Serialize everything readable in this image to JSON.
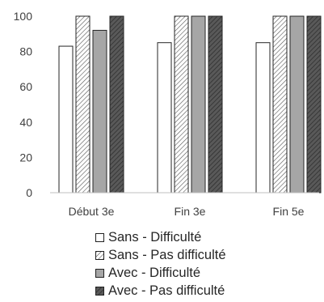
{
  "chart_data": {
    "type": "bar",
    "categories": [
      "Début 3e",
      "Fin 3e",
      "Fin 5e"
    ],
    "series": [
      {
        "name": "Sans - Difficulté",
        "values": [
          83,
          85,
          85
        ],
        "fill": "#ffffff",
        "pattern": "solid"
      },
      {
        "name": "Sans - Pas difficulté",
        "values": [
          100,
          100,
          100
        ],
        "fill": "#ffffff",
        "pattern": "hatch-light"
      },
      {
        "name": "Avec - Difficulté",
        "values": [
          92,
          100,
          100
        ],
        "fill": "#a6a6a6",
        "pattern": "solid"
      },
      {
        "name": "Avec - Pas difficulté",
        "values": [
          100,
          100,
          100
        ],
        "fill": "#595959",
        "pattern": "hatch-dark"
      }
    ],
    "yticks": [
      "0",
      "20",
      "40",
      "60",
      "80",
      "100"
    ],
    "ylim": [
      0,
      100
    ],
    "grid": false,
    "legend_position": "bottom",
    "colors": {
      "axis": "#bfbfbf",
      "bar_border": "#262626",
      "text": "#404040"
    }
  }
}
